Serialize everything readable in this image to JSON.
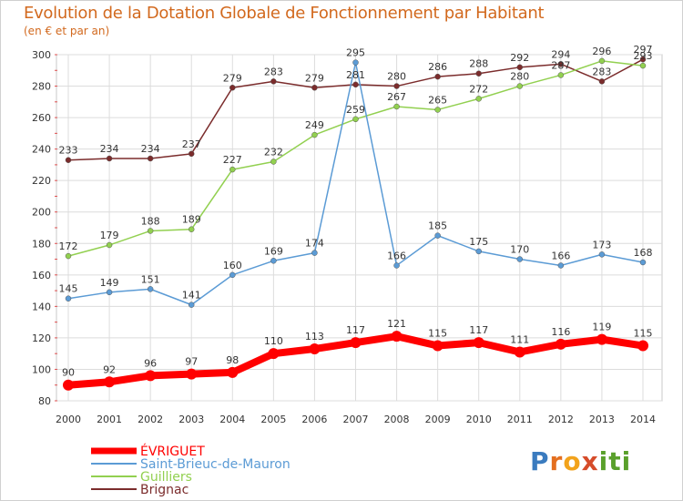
{
  "page": {
    "title": "Evolution de la Dotation Globale de Fonctionnement par Habitant",
    "subtitle": "(en € et par an)",
    "logo": "Proxiti"
  },
  "chart_data": {
    "type": "line",
    "title": "Evolution de la Dotation Globale de Fonctionnement par Habitant",
    "subtitle": "(en € et par an)",
    "xlabel": "",
    "ylabel": "",
    "x": [
      2000,
      2001,
      2002,
      2003,
      2004,
      2005,
      2006,
      2007,
      2008,
      2009,
      2010,
      2011,
      2012,
      2013,
      2014
    ],
    "ylim": [
      80,
      300
    ],
    "yticks": [
      80,
      100,
      120,
      140,
      160,
      180,
      200,
      220,
      240,
      260,
      280,
      300
    ],
    "grid": true,
    "legend_position": "bottom-left",
    "series": [
      {
        "name": "ÉVRIGUET",
        "color": "#ff0000",
        "emphasis": true,
        "values": [
          90,
          92,
          96,
          97,
          98,
          110,
          113,
          117,
          121,
          115,
          117,
          111,
          116,
          119,
          115
        ]
      },
      {
        "name": "Saint-Brieuc-de-Mauron",
        "color": "#5b9bd5",
        "emphasis": false,
        "values": [
          145,
          149,
          151,
          141,
          160,
          169,
          174,
          295,
          166,
          185,
          175,
          170,
          166,
          173,
          168
        ]
      },
      {
        "name": "Guilliers",
        "color": "#92d050",
        "emphasis": false,
        "values": [
          172,
          179,
          188,
          189,
          227,
          232,
          249,
          259,
          267,
          265,
          272,
          280,
          287,
          296,
          293
        ]
      },
      {
        "name": "Brignac",
        "color": "#7b2c2c",
        "emphasis": false,
        "values": [
          233,
          234,
          234,
          237,
          279,
          283,
          279,
          281,
          280,
          286,
          288,
          292,
          294,
          283,
          297
        ]
      }
    ]
  }
}
